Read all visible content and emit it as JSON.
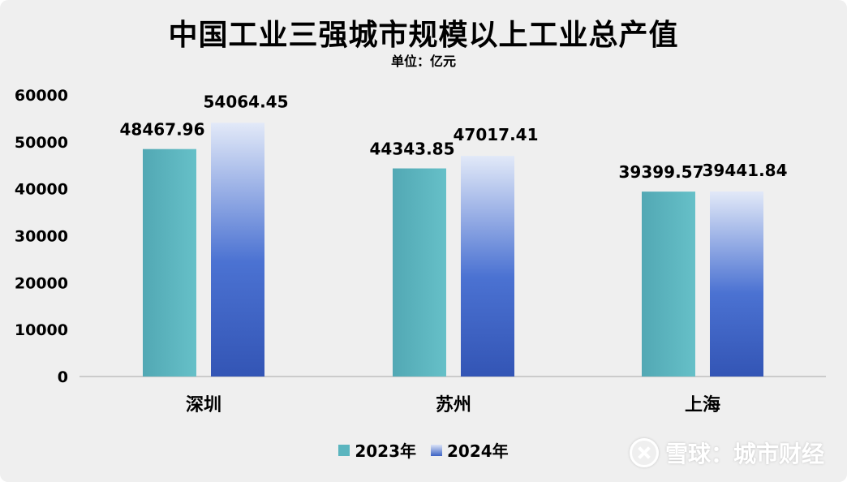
{
  "title": "中国工业三强城市规模以上工业总产值",
  "subtitle": "单位：亿元",
  "watermark": "雪球：城市财经",
  "chart_data": {
    "type": "bar",
    "categories": [
      "深圳",
      "苏州",
      "上海"
    ],
    "series": [
      {
        "name": "2023年",
        "values": [
          48467.96,
          44343.85,
          39399.57
        ],
        "color": "#5bb5bf",
        "labels": [
          "48467.96",
          "44343.85",
          "39399.57"
        ]
      },
      {
        "name": "2024年",
        "values": [
          54064.45,
          47017.41,
          39441.84
        ],
        "color": "#3c62c4",
        "labels": [
          "54064.45",
          "47017.41",
          "39441.84"
        ]
      }
    ],
    "ylim": [
      0,
      60000
    ],
    "yticks": [
      0,
      10000,
      20000,
      30000,
      40000,
      50000,
      60000
    ],
    "legend": "bottom",
    "grid": false
  }
}
